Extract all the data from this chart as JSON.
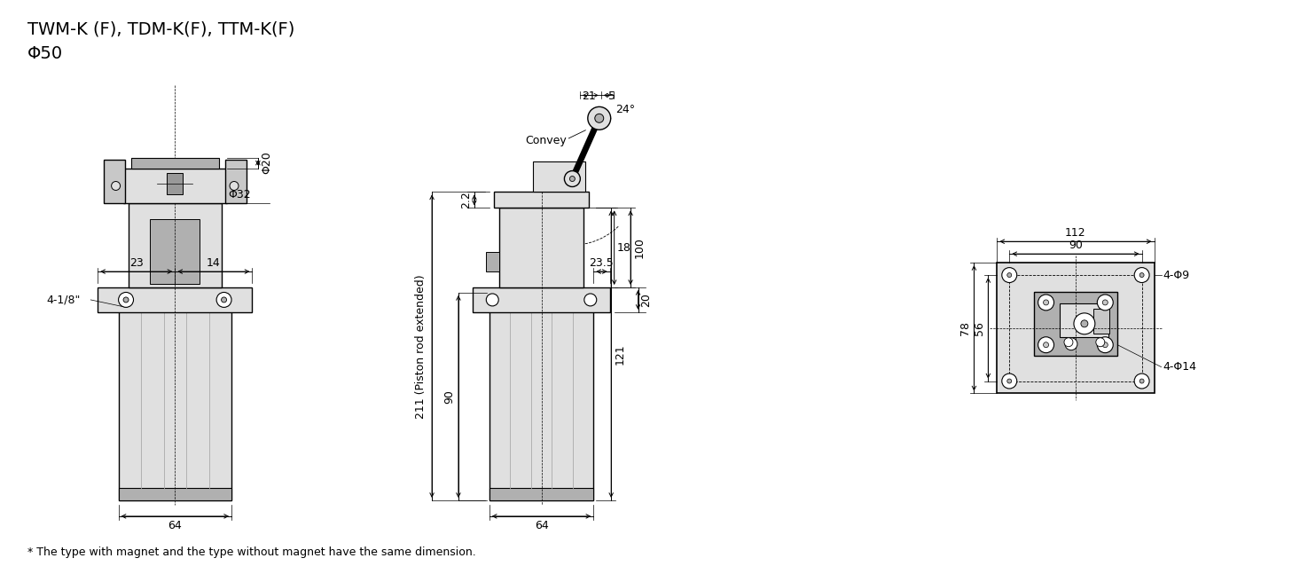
{
  "title1": "TWM-K (F), TDM-K(F), TTM-K(F)",
  "title2": "Φ50",
  "footnote": "* The type with magnet and the type without magnet have the same dimension.",
  "bg_color": "#ffffff",
  "line_color": "#000000",
  "gray_fill": "#c8c8c8",
  "light_gray": "#e0e0e0",
  "dark_gray": "#888888",
  "med_gray": "#b0b0b0"
}
